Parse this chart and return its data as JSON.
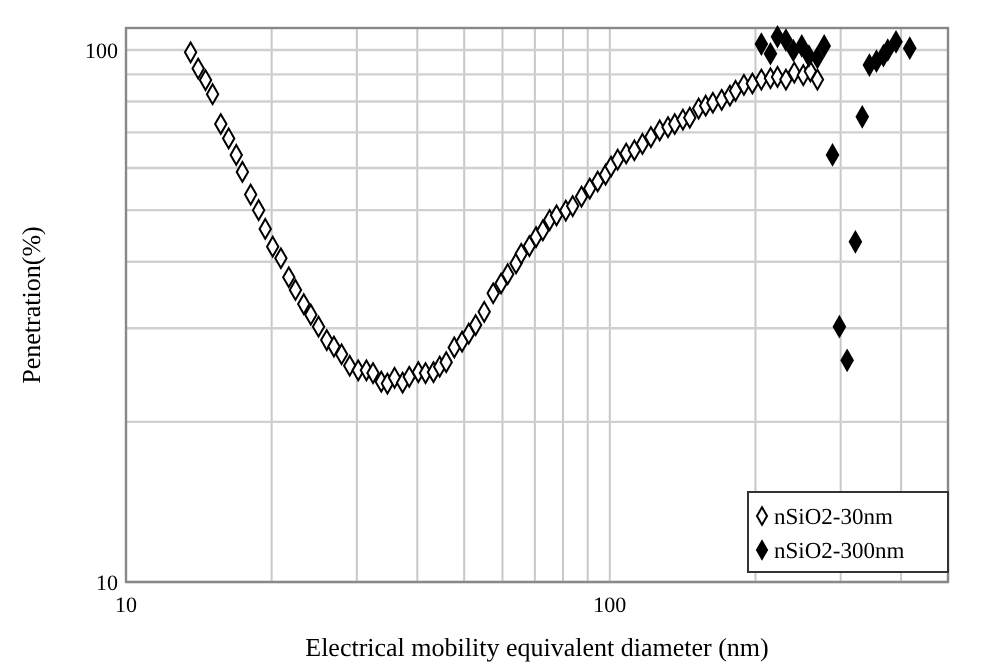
{
  "chart_data": {
    "type": "scatter",
    "xlabel": "Electrical mobility equivalent diameter (nm)",
    "ylabel": "Penetration(%)",
    "log": "xy",
    "grid": true,
    "legend": "bottom right",
    "xlim": [
      10,
      500
    ],
    "ylim": [
      10,
      110
    ],
    "xticks": [
      10,
      {
        "value": 20,
        "label": null
      },
      {
        "value": 30,
        "label": null
      },
      {
        "value": 40,
        "label": null
      },
      {
        "value": 50,
        "label": null
      },
      {
        "value": 60,
        "label": null
      },
      {
        "value": 70,
        "label": null
      },
      {
        "value": 80,
        "label": null
      },
      {
        "value": 90,
        "label": null
      },
      100,
      {
        "value": 200,
        "label": null
      },
      {
        "value": 300,
        "label": null
      },
      {
        "value": 400,
        "label": null
      }
    ],
    "yticks": [
      10,
      {
        "value": 20,
        "label": null
      },
      {
        "value": 30,
        "label": null
      },
      {
        "value": 40,
        "label": null
      },
      {
        "value": 50,
        "label": null
      },
      {
        "value": 60,
        "label": null
      },
      {
        "value": 70,
        "label": null
      },
      {
        "value": 80,
        "label": null
      },
      {
        "value": 90,
        "label": null
      },
      100
    ],
    "series": [
      {
        "name": "nSiO2-30nm",
        "color": "#000000",
        "marker": "diamond",
        "x": [
          13.6,
          14.1,
          14.6,
          15.1,
          15.7,
          16.3,
          16.9,
          17.4,
          18.1,
          18.8,
          19.4,
          20.1,
          20.9,
          21.7,
          22.4,
          23.3,
          24.1,
          25.0,
          26.0,
          26.9,
          27.9,
          29.0,
          30.2,
          31.4,
          32.4,
          33.7,
          34.7,
          35.9,
          37.3,
          38.5,
          40.2,
          41.6,
          43.2,
          44.5,
          45.9,
          47.7,
          49.5,
          51.1,
          52.8,
          55.0,
          57.4,
          59.6,
          61.5,
          64.0,
          65.6,
          68.2,
          70.4,
          72.7,
          75.1,
          77.6,
          81.1,
          83.8,
          87.4,
          90.9,
          94.4,
          98.0,
          100.6,
          103.8,
          108.1,
          112.4,
          116.8,
          121.6,
          126.8,
          131.9,
          136.2,
          141.6,
          146.3,
          152.6,
          157.8,
          163.3,
          170.3,
          177.1,
          181.9,
          189.3,
          197.1,
          205.7,
          214.8,
          222.1,
          231.2,
          240.6,
          251.1,
          259.7,
          268.6
        ],
        "values": [
          99,
          92.3,
          87.8,
          82.6,
          72.6,
          68.2,
          63.5,
          59.0,
          53.5,
          50.0,
          46.1,
          42.7,
          40.6,
          37.4,
          35.4,
          33.3,
          31.8,
          30.2,
          28.5,
          27.7,
          26.8,
          25.5,
          25.0,
          25.0,
          24.7,
          23.8,
          23.6,
          24.2,
          23.7,
          24.3,
          24.8,
          24.7,
          24.8,
          25.4,
          25.9,
          27.6,
          28.3,
          29.3,
          30.4,
          32.2,
          34.9,
          36.4,
          37.9,
          39.7,
          41.4,
          42.8,
          44.5,
          45.8,
          47.9,
          48.9,
          49.9,
          50.9,
          53.0,
          54.9,
          56.6,
          58.3,
          60.4,
          62.2,
          63.9,
          64.8,
          66.6,
          68.6,
          70.6,
          71.6,
          72.6,
          74.0,
          74.6,
          77.6,
          78.6,
          79.6,
          80.6,
          82.1,
          83.8,
          86,
          86.5,
          88,
          88.5,
          89,
          88,
          90.7,
          89.7,
          91.2,
          88
        ]
      },
      {
        "name": "nSiO2-300nm",
        "color": "#000000",
        "marker": "diamond",
        "x": [
          205.7,
          214.8,
          222.1,
          231.2,
          239.5,
          249.3,
          257.9,
          268.6,
          277.4,
          288.6,
          298.2,
          309.4,
          321.8,
          332.5,
          344.0,
          355.7,
          367.7,
          375.4,
          390.4,
          416.8
        ],
        "values": [
          102.6,
          98.4,
          105.9,
          104.4,
          99.8,
          101.8,
          97.4,
          96.8,
          101.8,
          63.5,
          30.2,
          26.1,
          43.6,
          74.9,
          93.7,
          95.3,
          97.6,
          100,
          103.6,
          100.8
        ]
      }
    ]
  }
}
